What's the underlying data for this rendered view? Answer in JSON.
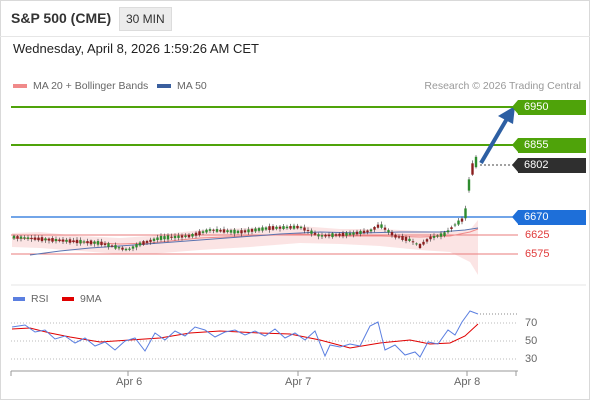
{
  "header": {
    "symbol": "S&P 500 (CME)",
    "timeframe": "30 MIN"
  },
  "datetime": "Wednesday, April 8, 2026 1:59:26 AM CET",
  "legend": {
    "bb": {
      "label": "MA 20 + Bollinger Bands",
      "color": "#f08a8a"
    },
    "ma50": {
      "label": "MA 50",
      "color": "#3a5f9e"
    },
    "credit": "Research © 2026 Trading Central"
  },
  "levels": {
    "target2": {
      "value": "6950",
      "color": "#4fa30a"
    },
    "target1": {
      "value": "6855",
      "color": "#4fa30a"
    },
    "last": {
      "value": "6802",
      "color": "#2f2f2f"
    },
    "pivot": {
      "value": "6670",
      "color": "#1e6fd9"
    },
    "support1": {
      "value": "6625",
      "color": "#e03b3b"
    },
    "support2": {
      "value": "6575",
      "color": "#e03b3b"
    }
  },
  "rsi_panel": {
    "rsi_label": "RSI",
    "rsi_color": "#5b7fe0",
    "ma_label": "9MA",
    "ma_color": "#e00000",
    "y_labels": [
      "70",
      "50",
      "30"
    ]
  },
  "x_axis": [
    "Apr 6",
    "Apr 7",
    "Apr 8"
  ],
  "chart_data": {
    "type": "candlestick",
    "y_levels": {
      "resistance_2": 6950,
      "resistance_1": 6855,
      "last": 6802,
      "pivot": 6670,
      "support_1": 6625,
      "support_2": 6575
    },
    "x_ticks": [
      "Apr 6",
      "Apr 7",
      "Apr 8"
    ],
    "rsi_ticks": [
      70,
      50,
      30
    ]
  }
}
